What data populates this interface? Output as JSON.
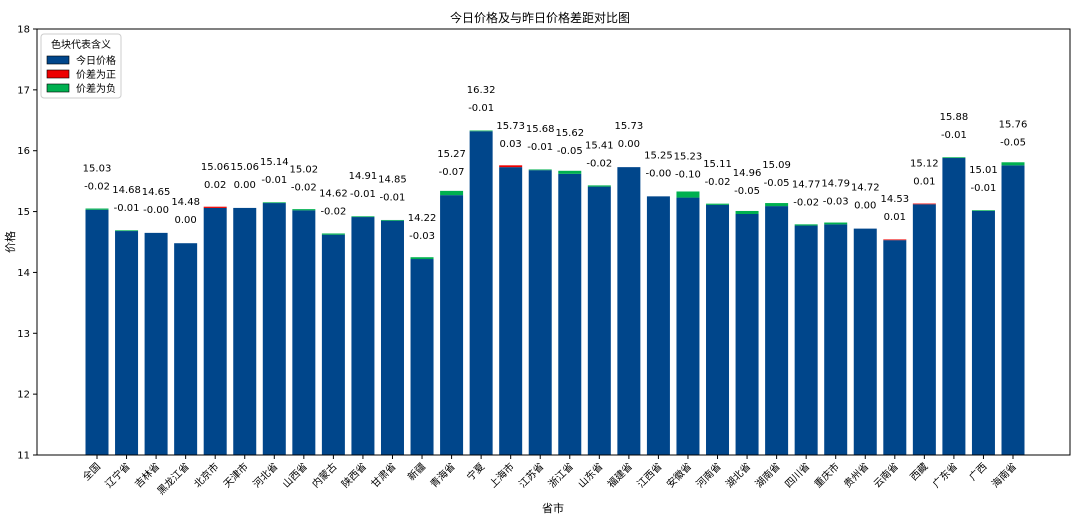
{
  "chart_data": {
    "type": "bar",
    "title": "今日价格及与昨日价格差距对比图",
    "xlabel": "省市",
    "ylabel": "价格",
    "ylim": [
      11,
      18
    ],
    "yticks": [
      11,
      12,
      13,
      14,
      15,
      16,
      17,
      18
    ],
    "grid": false,
    "legend": {
      "title": "色块代表含义",
      "placement": "top-left",
      "entries": [
        {
          "label": "今日价格",
          "color": "#00468b"
        },
        {
          "label": "价差为正",
          "color": "#ed0000"
        },
        {
          "label": "价差为负",
          "color": "#00b050"
        }
      ]
    },
    "categories": [
      "全国",
      "辽宁省",
      "吉林省",
      "黑龙江省",
      "北京市",
      "天津市",
      "河北省",
      "山西省",
      "内蒙古",
      "陕西省",
      "甘肃省",
      "新疆",
      "青海省",
      "宁夏",
      "上海市",
      "江苏省",
      "浙江省",
      "山东省",
      "福建省",
      "江西省",
      "安徽省",
      "河南省",
      "湖北省",
      "湖南省",
      "四川省",
      "重庆市",
      "贵州省",
      "云南省",
      "西藏",
      "广东省",
      "广西",
      "海南省"
    ],
    "series": [
      {
        "name": "今日价格",
        "values": [
          15.03,
          14.68,
          14.65,
          14.48,
          15.06,
          15.06,
          15.14,
          15.02,
          14.62,
          14.91,
          14.85,
          14.22,
          15.27,
          16.32,
          15.73,
          15.68,
          15.62,
          15.41,
          15.73,
          15.25,
          15.23,
          15.11,
          14.96,
          15.09,
          14.77,
          14.79,
          14.72,
          14.53,
          15.12,
          15.88,
          15.01,
          15.76
        ]
      },
      {
        "name": "价差",
        "values": [
          -0.02,
          -0.01,
          -0.0,
          0.0,
          0.02,
          0.0,
          -0.01,
          -0.02,
          -0.02,
          -0.01,
          -0.01,
          -0.03,
          -0.07,
          -0.01,
          0.03,
          -0.01,
          -0.05,
          -0.02,
          0.0,
          -0.0,
          -0.1,
          -0.02,
          -0.05,
          -0.05,
          -0.02,
          -0.03,
          0.0,
          0.01,
          0.01,
          -0.01,
          -0.01,
          -0.05
        ]
      }
    ],
    "price_labels": [
      "15.03",
      "14.68",
      "14.65",
      "14.48",
      "15.06",
      "15.06",
      "15.14",
      "15.02",
      "14.62",
      "14.91",
      "14.85",
      "14.22",
      "15.27",
      "16.32",
      "15.73",
      "15.68",
      "15.62",
      "15.41",
      "15.73",
      "15.25",
      "15.23",
      "15.11",
      "14.96",
      "15.09",
      "14.77",
      "14.79",
      "14.72",
      "14.53",
      "15.12",
      "15.88",
      "15.01",
      "15.76"
    ],
    "diff_labels": [
      "-0.02",
      "-0.01",
      "-0.00",
      "0.00",
      "0.02",
      "0.00",
      "-0.01",
      "-0.02",
      "-0.02",
      "-0.01",
      "-0.01",
      "-0.03",
      "-0.07",
      "-0.01",
      "0.03",
      "-0.01",
      "-0.05",
      "-0.02",
      "0.00",
      "-0.00",
      "-0.10",
      "-0.02",
      "-0.05",
      "-0.05",
      "-0.02",
      "-0.03",
      "0.00",
      "0.01",
      "0.01",
      "-0.01",
      "-0.01",
      "-0.05"
    ],
    "colors": {
      "price": "#00468b",
      "positive": "#ed0000",
      "negative": "#00b050"
    }
  }
}
